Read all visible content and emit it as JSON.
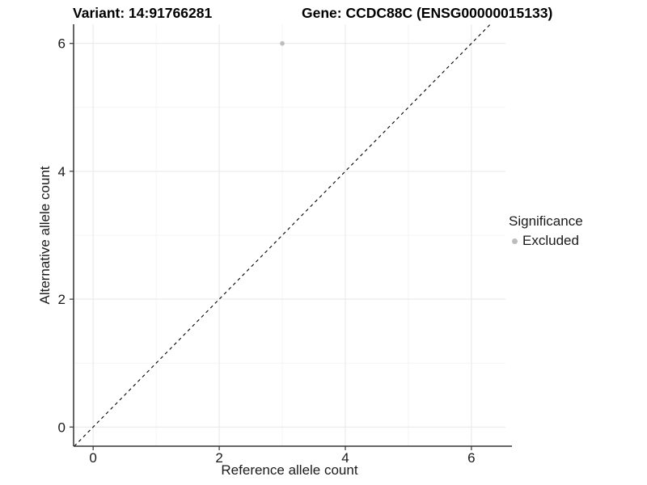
{
  "titles": {
    "variant": "Variant: 14:91766281",
    "gene": "Gene: CCDC88C (ENSG00000015133)"
  },
  "legend": {
    "title": "Significance",
    "entries": [
      {
        "label": "Excluded",
        "color": "#bdbdbd"
      }
    ]
  },
  "chart_data": {
    "type": "scatter",
    "xlabel": "Reference allele count",
    "ylabel": "Alternative allele count",
    "xlim": [
      -0.31,
      6.54
    ],
    "ylim": [
      -0.3,
      6.3
    ],
    "x_ticks": [
      0,
      2,
      4,
      6
    ],
    "y_ticks": [
      0,
      2,
      4,
      6
    ],
    "x_minor_ticks": [
      1,
      3,
      5
    ],
    "y_minor_ticks": [
      1,
      3,
      5
    ],
    "grid": true,
    "legend_position": "right",
    "series": [
      {
        "name": "Excluded",
        "color": "#bdbdbd",
        "points": [
          {
            "x": 3,
            "y": 6
          }
        ]
      }
    ],
    "reference_line": {
      "kind": "identity",
      "slope": 1,
      "intercept": 0,
      "style": "dashed",
      "color": "#000000"
    },
    "colors": {
      "grid_major": "#e9e9e9",
      "grid_minor": "#f2f2f2",
      "axis_line": "#333333",
      "tick_label": "#1a1a1a",
      "point": "#bdbdbd"
    }
  }
}
